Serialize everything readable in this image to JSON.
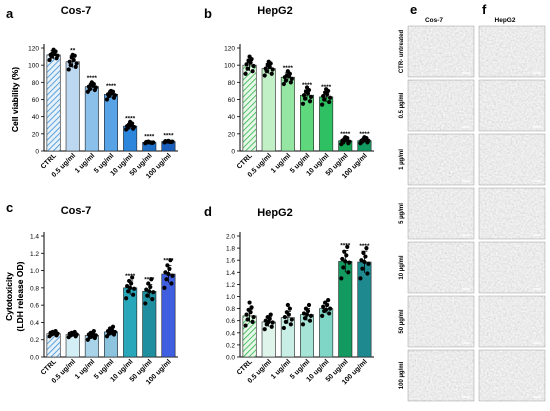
{
  "panels": [
    {
      "letter": "a",
      "title": "Cos-7",
      "chart_data": {
        "type": "bar",
        "ylabel": "Cell viability (%)",
        "ylim": [
          0,
          120
        ],
        "yticks": [
          0,
          20,
          40,
          60,
          80,
          100,
          120
        ],
        "categories": [
          "CTRL",
          "0.5 ug/ml",
          "1 ug/ml",
          "5 ug/ml",
          "10 ug/ml",
          "50 ug/ml",
          "100 ug/ml"
        ],
        "values": [
          112,
          104,
          75,
          66,
          29,
          10,
          11
        ],
        "errors": [
          5,
          7,
          4,
          4,
          3,
          1,
          1
        ],
        "significance": [
          "",
          "**",
          "****",
          "****",
          "****",
          "****",
          "****"
        ],
        "points": [
          [
            106,
            108,
            110,
            111,
            112,
            113,
            114,
            116,
            118
          ],
          [
            95,
            98,
            100,
            102,
            104,
            106,
            109,
            111,
            112
          ],
          [
            69,
            71,
            72,
            74,
            75,
            76,
            77,
            78,
            80
          ],
          [
            60,
            62,
            64,
            65,
            66,
            67,
            68,
            69,
            70
          ],
          [
            25,
            26,
            27,
            28,
            29,
            30,
            31,
            32,
            34
          ],
          [
            9,
            9.5,
            10,
            10,
            10.5,
            10,
            11,
            9.8,
            10.2
          ],
          [
            10,
            10.5,
            11,
            11,
            11.5,
            10.8,
            11.2,
            10.6,
            11.8
          ]
        ]
      },
      "colors": [
        "#dcebf7",
        "#bcd8f0",
        "#8bc0ea",
        "#57a3e6",
        "#2c86dc",
        "#1f6fc9",
        "#1a5fbd"
      ],
      "hatch_first": true
    },
    {
      "letter": "b",
      "title": "HepG2",
      "chart_data": {
        "type": "bar",
        "ylabel": "Cell viability (%)",
        "ylim": [
          0,
          120
        ],
        "yticks": [
          0,
          20,
          40,
          60,
          80,
          100,
          120
        ],
        "categories": [
          "CTRL",
          "0.5 ug/ml",
          "1 ug/ml",
          "5 ug/ml",
          "10 ug/ml",
          "50 ug/ml",
          "100 ug/ml"
        ],
        "values": [
          100,
          96,
          86,
          65,
          63,
          12,
          12
        ],
        "errors": [
          7,
          6,
          5,
          6,
          6,
          2,
          2
        ],
        "significance": [
          "",
          "",
          "****",
          "****",
          "****",
          "****",
          "****"
        ],
        "points": [
          [
            90,
            93,
            96,
            99,
            101,
            103,
            105,
            107,
            110
          ],
          [
            88,
            90,
            93,
            95,
            96,
            98,
            100,
            102,
            104
          ],
          [
            78,
            80,
            82,
            84,
            86,
            87,
            88,
            90,
            93
          ],
          [
            55,
            58,
            61,
            63,
            65,
            67,
            69,
            71,
            74
          ],
          [
            54,
            57,
            60,
            62,
            64,
            66,
            68,
            70,
            72
          ],
          [
            8,
            9,
            10,
            11,
            12,
            13,
            14,
            15,
            16
          ],
          [
            9,
            10,
            11,
            12,
            12,
            13,
            14,
            15,
            16
          ]
        ]
      },
      "colors": [
        "#dff6df",
        "#c2f0c6",
        "#94e6a2",
        "#5fd87d",
        "#2ec062",
        "#16a653",
        "#139a60"
      ],
      "hatch_first": true
    },
    {
      "letter": "c",
      "title": "Cos-7",
      "chart_data": {
        "type": "bar",
        "ylabel": "Cytotoxicity\n(LDH release OD)",
        "ylim": [
          0,
          1.4
        ],
        "yticks": [
          0.0,
          0.2,
          0.4,
          0.6,
          0.8,
          1.0,
          1.2,
          1.4
        ],
        "categories": [
          "CTRL",
          "0.5 ug/ml",
          "1 ug/ml",
          "5 ug/ml",
          "10 ug/ml",
          "50 ug/ml",
          "100 ug/ml"
        ],
        "values": [
          0.27,
          0.26,
          0.25,
          0.29,
          0.8,
          0.76,
          0.96
        ],
        "errors": [
          0.02,
          0.02,
          0.04,
          0.04,
          0.08,
          0.08,
          0.1
        ],
        "significance": [
          "",
          "",
          "",
          "",
          "****",
          "****",
          "****"
        ],
        "points": [
          [
            0.24,
            0.25,
            0.26,
            0.27,
            0.28,
            0.28,
            0.29,
            0.3,
            0.27
          ],
          [
            0.23,
            0.24,
            0.25,
            0.26,
            0.27,
            0.27,
            0.28,
            0.29,
            0.26
          ],
          [
            0.2,
            0.22,
            0.23,
            0.25,
            0.26,
            0.27,
            0.28,
            0.3,
            0.24
          ],
          [
            0.24,
            0.26,
            0.27,
            0.29,
            0.3,
            0.31,
            0.33,
            0.35,
            0.28
          ],
          [
            0.68,
            0.72,
            0.76,
            0.79,
            0.82,
            0.85,
            0.88,
            0.92,
            0.8
          ],
          [
            0.62,
            0.67,
            0.71,
            0.75,
            0.78,
            0.81,
            0.85,
            0.9,
            0.76
          ],
          [
            0.8,
            0.85,
            0.9,
            0.94,
            0.98,
            1.02,
            1.06,
            1.12,
            0.96
          ]
        ]
      },
      "colors": [
        "#cfe2f3",
        "#d4eef5",
        "#a9d3e8",
        "#8cc4de",
        "#27a7b9",
        "#1f8f9f",
        "#3f5fe0"
      ],
      "hatch_first": true
    },
    {
      "letter": "d",
      "title": "HepG2",
      "chart_data": {
        "type": "bar",
        "ylabel": "Cytotoxicity\n(LDH release OD)",
        "ylim": [
          0,
          2.0
        ],
        "yticks": [
          0.0,
          0.2,
          0.4,
          0.6,
          0.8,
          1.0,
          1.2,
          1.4,
          1.6,
          1.8,
          2.0
        ],
        "categories": [
          "CTRL",
          "0.5 ug/ml",
          "1 ug/ml",
          "5 ug/ml",
          "10 ug/ml",
          "50 ug/ml",
          "100 ug/ml"
        ],
        "values": [
          0.68,
          0.58,
          0.65,
          0.7,
          0.8,
          1.58,
          1.57
        ],
        "errors": [
          0.1,
          0.08,
          0.1,
          0.1,
          0.08,
          0.18,
          0.18
        ],
        "significance": [
          "",
          "",
          "",
          "",
          "",
          "****",
          "****"
        ],
        "points": [
          [
            0.52,
            0.58,
            0.62,
            0.66,
            0.7,
            0.74,
            0.78,
            0.82,
            0.9
          ],
          [
            0.46,
            0.5,
            0.54,
            0.57,
            0.6,
            0.63,
            0.66,
            0.7,
            0.58
          ],
          [
            0.48,
            0.54,
            0.58,
            0.62,
            0.66,
            0.7,
            0.74,
            0.8,
            0.86
          ],
          [
            0.54,
            0.6,
            0.64,
            0.68,
            0.72,
            0.76,
            0.8,
            0.86,
            0.7
          ],
          [
            0.68,
            0.72,
            0.76,
            0.8,
            0.83,
            0.86,
            0.9,
            0.94,
            0.78
          ],
          [
            1.3,
            1.4,
            1.48,
            1.56,
            1.62,
            1.68,
            1.74,
            1.82,
            1.58
          ],
          [
            1.3,
            1.38,
            1.46,
            1.54,
            1.6,
            1.66,
            1.72,
            1.8,
            1.57
          ]
        ]
      },
      "colors": [
        "#c8f0c8",
        "#dff4ea",
        "#c8eee6",
        "#a7e4d8",
        "#7fd6c6",
        "#139a60",
        "#1e8a8f"
      ],
      "hatch_first": true
    }
  ],
  "micrographs": {
    "col_e_letter": "e",
    "col_f_letter": "f",
    "col_e_title": "Cos-7",
    "col_f_title": "HepG2",
    "rows": [
      "CTR- untreated",
      "0.5 µg/ml",
      "1 µg/ml",
      "5 µg/ml",
      "10 µg/ml",
      "50 µg/ml",
      "100 µg/ml"
    ]
  }
}
